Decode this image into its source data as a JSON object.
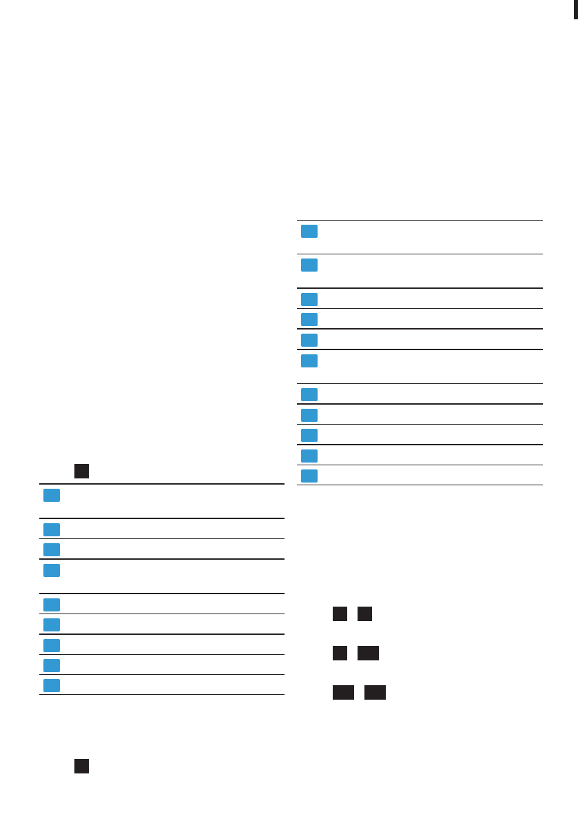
{
  "colors": {
    "marker": "#3399d3",
    "key": "#231f20",
    "rule": "#231f20"
  },
  "left_table": {
    "rows": [
      {
        "tall": true,
        "thick": true
      },
      {
        "tall": false,
        "thick": false
      },
      {
        "tall": false,
        "thick": true
      },
      {
        "tall": true,
        "thick": true
      },
      {
        "tall": false,
        "thick": false
      },
      {
        "tall": false,
        "thick": true
      },
      {
        "tall": false,
        "thick": false
      },
      {
        "tall": false,
        "thick": false
      },
      {
        "tall": false,
        "thick": false
      }
    ]
  },
  "right_table": {
    "rows": [
      {
        "tall": true,
        "thick": false
      },
      {
        "tall": true,
        "thick": true
      },
      {
        "tall": false,
        "thick": false
      },
      {
        "tall": false,
        "thick": true
      },
      {
        "tall": false,
        "thick": true
      },
      {
        "tall": true,
        "thick": false
      },
      {
        "tall": false,
        "thick": true
      },
      {
        "tall": false,
        "thick": false
      },
      {
        "tall": false,
        "thick": true
      },
      {
        "tall": false,
        "thick": false
      },
      {
        "tall": false,
        "thick": false
      }
    ]
  }
}
